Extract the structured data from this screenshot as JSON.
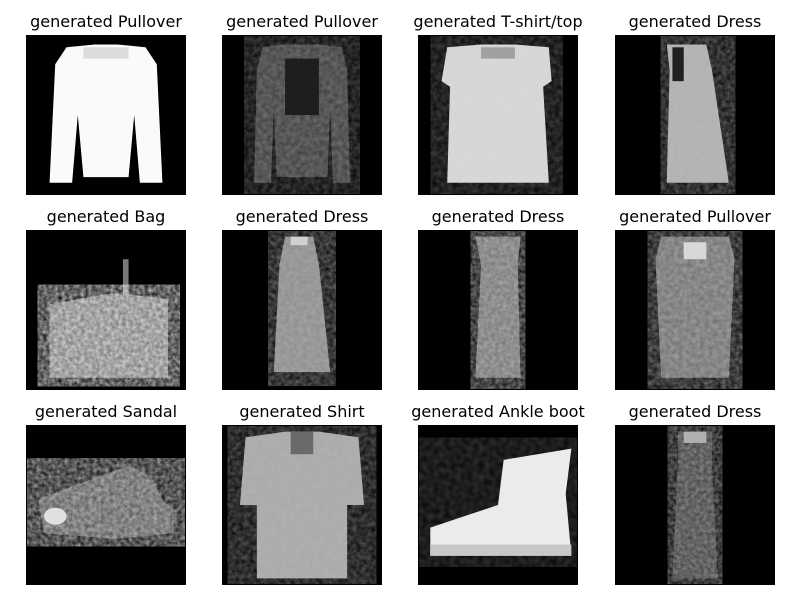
{
  "panels": [
    {
      "title": "generated Pullover",
      "depicts": "pullover"
    },
    {
      "title": "generated Pullover",
      "depicts": "pullover-dark"
    },
    {
      "title": "generated T-shirt/top",
      "depicts": "tshirt"
    },
    {
      "title": "generated Dress",
      "depicts": "dress"
    },
    {
      "title": "generated Bag",
      "depicts": "bag"
    },
    {
      "title": "generated Dress",
      "depicts": "dress"
    },
    {
      "title": "generated Dress",
      "depicts": "dress-slim"
    },
    {
      "title": "generated Pullover",
      "depicts": "pullover-textured"
    },
    {
      "title": "generated Sandal",
      "depicts": "sandal"
    },
    {
      "title": "generated Shirt",
      "depicts": "shirt"
    },
    {
      "title": "generated Ankle boot",
      "depicts": "ankle-boot"
    },
    {
      "title": "generated Dress",
      "depicts": "dress-dark"
    }
  ]
}
